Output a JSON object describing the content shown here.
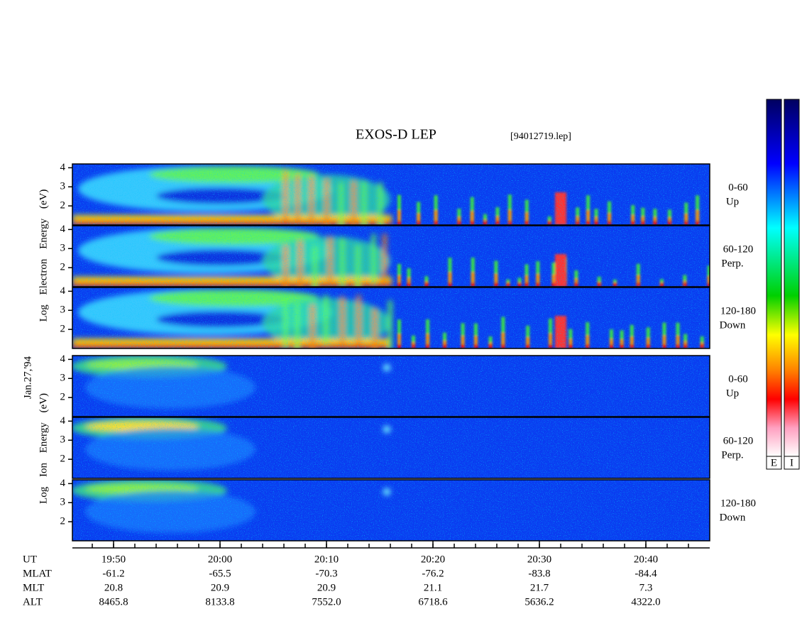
{
  "title": "EXOS-D LEP",
  "file": "[94012719.lep]",
  "electron_label": "Log Electron Energy (eV)",
  "ion_label": "Log Ion Energy (eV)",
  "date": "Jan.27,'94",
  "ylim": [
    1,
    4.2
  ],
  "yticks": [
    2,
    3,
    4
  ],
  "panels": [
    {
      "species": "electron",
      "angle": "0-60",
      "direction": "Up"
    },
    {
      "species": "electron",
      "angle": "60-120",
      "direction": "Perp."
    },
    {
      "species": "electron",
      "angle": "120-180",
      "direction": "Down"
    },
    {
      "species": "ion",
      "angle": "0-60",
      "direction": "Up"
    },
    {
      "species": "ion",
      "angle": "60-120",
      "direction": "Perp."
    },
    {
      "species": "ion",
      "angle": "120-180",
      "direction": "Down"
    }
  ],
  "time_axis": {
    "rows": [
      {
        "label": "UT",
        "values": [
          "19:50",
          "20:00",
          "20:10",
          "20:20",
          "20:30",
          "20:40"
        ]
      },
      {
        "label": "MLAT",
        "values": [
          "-61.2",
          "-65.5",
          "-70.3",
          "-76.2",
          "-83.8",
          "-84.4"
        ]
      },
      {
        "label": "MLT",
        "values": [
          "20.8",
          "20.9",
          "20.9",
          "21.1",
          "21.7",
          "7.3"
        ]
      },
      {
        "label": "ALT",
        "values": [
          "8465.8",
          "8133.8",
          "7552.0",
          "6718.6",
          "5636.2",
          "4322.0"
        ]
      }
    ]
  },
  "colorbars": [
    "E",
    "I"
  ]
}
